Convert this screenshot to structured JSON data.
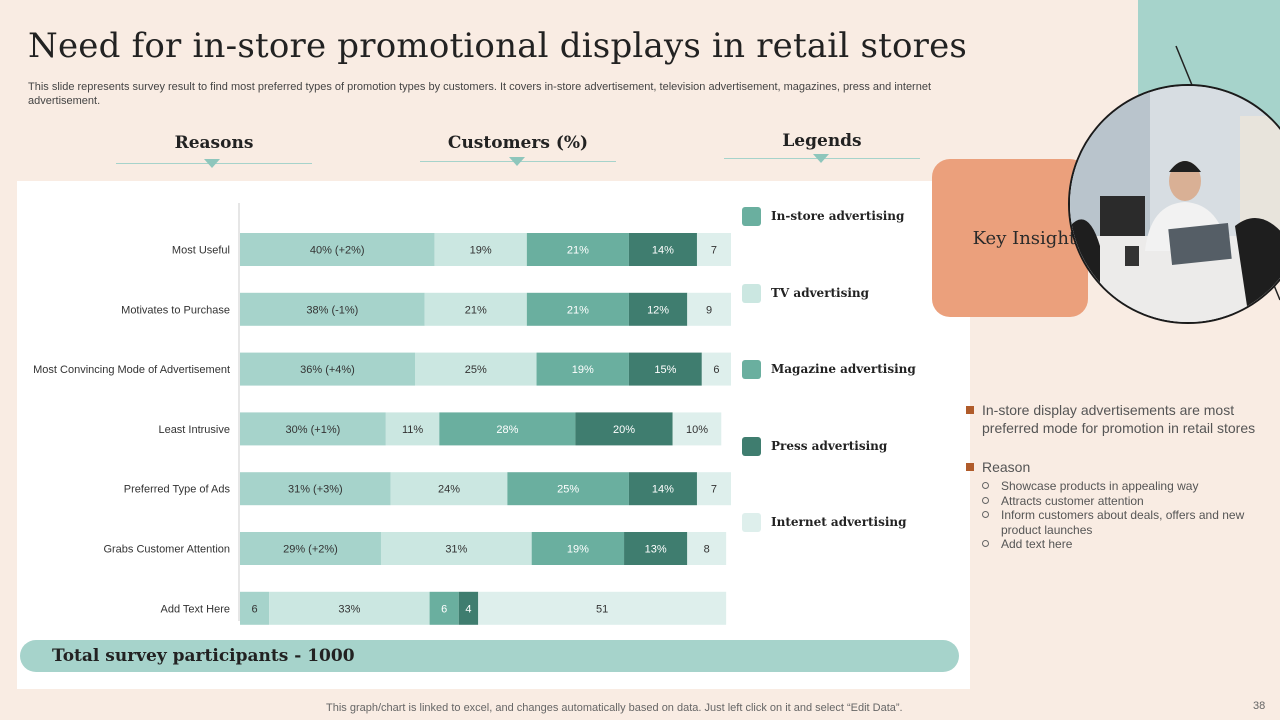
{
  "slide": {
    "title": "Need for in-store promotional displays in retail stores",
    "subtitle": "This slide represents survey result to find most preferred types of promotion types by customers. It covers in-store advertisement, television advertisement, magazines, press and internet advertisement.",
    "page_number": "38",
    "note": "This graph/chart is linked to excel, and changes automatically based on data. Just left click on it and select “Edit Data”."
  },
  "headers": {
    "reasons": "Reasons",
    "customers": "Customers (%)",
    "legends": "Legends"
  },
  "legend": [
    {
      "label": "In-store advertising",
      "color": "#6aaf9f"
    },
    {
      "label": "TV advertising",
      "color": "#cbe7e1"
    },
    {
      "label": "Magazine advertising",
      "color": "#6aaf9f"
    },
    {
      "label": "Press advertising",
      "color": "#3f7d6f"
    },
    {
      "label": "Internet advertising",
      "color": "#deefec"
    }
  ],
  "footer": {
    "total_label": "Total survey participants - 1000"
  },
  "insights": {
    "box_label": "Key Insights",
    "point1": "In-store display advertisements are most preferred mode for promotion in retail stores",
    "reason_label": "Reason",
    "reasons": [
      "Showcase products in appealing way",
      "Attracts customer attention",
      "Inform customers about deals, offers and new product launches",
      "Add text here"
    ]
  },
  "chart_data": {
    "type": "bar",
    "orientation": "horizontal",
    "stacked": true,
    "categories": [
      "Most Useful",
      "Motivates to Purchase",
      "Most Convincing Mode of Advertisement",
      "Least Intrusive",
      "Preferred Type of Ads",
      "Grabs Customer Attention",
      "Add Text Here"
    ],
    "series": [
      {
        "name": "In-store advertising",
        "color": "#a6d3cb",
        "values": [
          40,
          38,
          36,
          30,
          31,
          29,
          6
        ],
        "labels": [
          "40%  (+2%)",
          "38%  (-1%)",
          "36%  (+4%)",
          "30%  (+1%)",
          "31%  (+3%)",
          "29%  (+2%)",
          "6"
        ]
      },
      {
        "name": "TV advertising",
        "color": "#cbe7e1",
        "values": [
          19,
          21,
          25,
          11,
          24,
          31,
          33
        ],
        "labels": [
          "19%",
          "21%",
          "25%",
          "11%",
          "24%",
          "31%",
          "33%"
        ]
      },
      {
        "name": "Magazine advertising",
        "color": "#6aaf9f",
        "values": [
          21,
          21,
          19,
          28,
          25,
          19,
          6
        ],
        "labels": [
          "21%",
          "21%",
          "19%",
          "28%",
          "25%",
          "19%",
          "6"
        ]
      },
      {
        "name": "Press advertising",
        "color": "#3f7d6f",
        "values": [
          14,
          12,
          15,
          20,
          14,
          13,
          4
        ],
        "labels": [
          "14%",
          "12%",
          "15%",
          "20%",
          "14%",
          "13%",
          "4"
        ]
      },
      {
        "name": "Internet advertising",
        "color": "#deefec",
        "values": [
          7,
          9,
          6,
          10,
          7,
          8,
          51
        ],
        "labels": [
          "7",
          "9",
          "6",
          "10%",
          "7",
          "8",
          "51"
        ]
      }
    ],
    "xlim": [
      0,
      101
    ]
  }
}
